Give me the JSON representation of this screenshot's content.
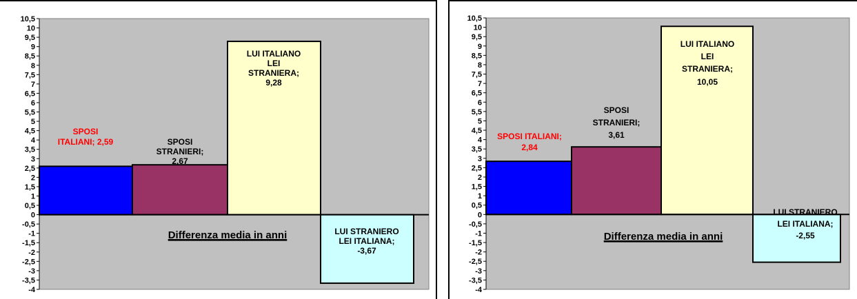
{
  "chart_data": [
    {
      "type": "bar",
      "xlabel": "Differenza media in anni",
      "ylabel": "",
      "ylim": [
        -4,
        10.5
      ],
      "y_ticks": [
        "10,5",
        "10",
        "9,5",
        "9",
        "8,5",
        "8",
        "7,5",
        "7",
        "6,5",
        "6",
        "5,5",
        "5",
        "4,5",
        "4",
        "3,5",
        "3",
        "2,5",
        "2",
        "1,5",
        "1",
        "0,5",
        "0",
        "-0,5",
        "-1",
        "-1,5",
        "-2",
        "-2,5",
        "-3",
        "-3,5",
        "-4"
      ],
      "plot_background": "#c0c0c0",
      "grid": false,
      "bars": [
        {
          "value": 2.59,
          "color": "#0000ff",
          "label_lines": [
            "SPOSI",
            "ITALIANI; 2,59"
          ],
          "label_color": "#ff0000"
        },
        {
          "value": 2.67,
          "color": "#993366",
          "label_lines": [
            "SPOSI",
            "STRANIERI;",
            "2,67"
          ],
          "label_color": "#000000"
        },
        {
          "value": 9.28,
          "color": "#ffffcc",
          "label_lines": [
            "LUI ITALIANO",
            "LEI",
            "STRANIERA;",
            "9,28"
          ],
          "label_color": "#000000"
        },
        {
          "value": -3.67,
          "color": "#ccffff",
          "label_lines": [
            "LUI STRANIERO",
            "LEI ITALIANA;",
            "-3,67"
          ],
          "label_color": "#000000"
        }
      ]
    },
    {
      "type": "bar",
      "xlabel": "Differenza media in anni",
      "ylabel": "",
      "ylim": [
        -4,
        10.5
      ],
      "y_ticks": [
        "10,5",
        "10",
        "9,5",
        "9",
        "8,5",
        "8",
        "7,5",
        "7",
        "6,5",
        "6",
        "5,5",
        "5",
        "4,5",
        "4",
        "3,5",
        "3",
        "2,5",
        "2",
        "1,5",
        "1",
        "0,5",
        "0",
        "-0,5",
        "-1",
        "-1,5",
        "-2",
        "-2,5",
        "-3",
        "-3,5",
        "-4"
      ],
      "plot_background": "#c0c0c0",
      "grid": false,
      "bars": [
        {
          "value": 2.84,
          "color": "#0000ff",
          "label_lines": [
            "SPOSI ITALIANI;",
            "2,84"
          ],
          "label_color": "#ff0000"
        },
        {
          "value": 3.61,
          "color": "#993366",
          "label_lines": [
            "SPOSI",
            "STRANIERI;",
            "3,61"
          ],
          "label_color": "#000000"
        },
        {
          "value": 10.05,
          "color": "#ffffcc",
          "label_lines": [
            "LUI ITALIANO",
            "LEI",
            "STRANIERA;",
            "10,05"
          ],
          "label_color": "#000000"
        },
        {
          "value": -2.55,
          "color": "#ccffff",
          "label_lines": [
            "LUI STRANIERO",
            "LEI ITALIANA;",
            "-2,55"
          ],
          "label_color": "#000000"
        }
      ]
    }
  ]
}
